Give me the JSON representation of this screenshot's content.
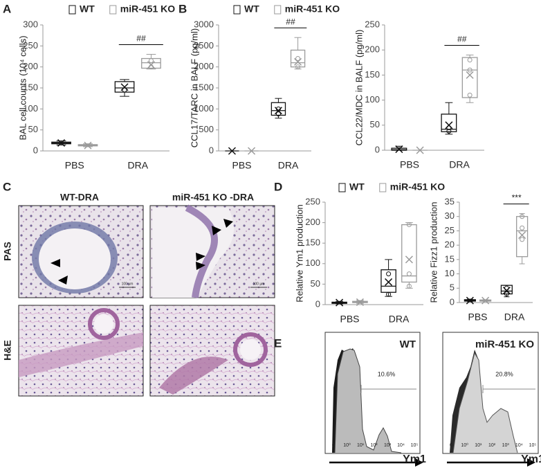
{
  "panel_labels": [
    "A",
    "B",
    "C",
    "D",
    "E"
  ],
  "chart_data": [
    {
      "type": "box",
      "ylabel": "BAL cell counts (10⁴ cells)",
      "categories": [
        "PBS",
        "DRA"
      ],
      "ylim": [
        0,
        300
      ],
      "yticks": [
        0,
        50,
        100,
        150,
        200,
        250,
        300
      ],
      "legend": true,
      "series": [
        {
          "name": "WT",
          "color": "#111111",
          "values": [
            {
              "min": 14,
              "q1": 17,
              "median": 19,
              "q3": 21,
              "max": 24,
              "mean": 19,
              "points": []
            },
            {
              "min": 130,
              "q1": 140,
              "median": 150,
              "q3": 165,
              "max": 170,
              "mean": 152,
              "points": [
                145
              ]
            }
          ]
        },
        {
          "name": "miR-451 KO",
          "color": "#9a9a9a",
          "values": [
            {
              "min": 10,
              "q1": 12,
              "median": 13,
              "q3": 15,
              "max": 17,
              "mean": 13,
              "points": []
            },
            {
              "min": 195,
              "q1": 197,
              "median": 210,
              "q3": 220,
              "max": 230,
              "mean": 205,
              "points": [
                200,
                215
              ]
            }
          ]
        }
      ],
      "annotations": [
        {
          "text": "##"
        }
      ]
    },
    {
      "type": "box",
      "ylabel": "CCL17/TARC in BALF (pg/ml)",
      "categories": [
        "PBS",
        "DRA"
      ],
      "ylim": [
        0,
        3000
      ],
      "yticks": [
        0,
        500,
        1000,
        1500,
        2000,
        2500,
        3000
      ],
      "legend": true,
      "series": [
        {
          "name": "WT",
          "color": "#111111",
          "values": [
            {
              "min": 0,
              "q1": 0,
              "median": 0,
              "q3": 0,
              "max": 0,
              "mean": 0,
              "points": []
            },
            {
              "min": 780,
              "q1": 850,
              "median": 960,
              "q3": 1150,
              "max": 1250,
              "mean": 960,
              "points": [
                880,
                1000
              ]
            }
          ]
        },
        {
          "name": "miR-451 KO",
          "color": "#9a9a9a",
          "values": [
            {
              "min": 0,
              "q1": 0,
              "median": 0,
              "q3": 0,
              "max": 0,
              "mean": 0,
              "points": []
            },
            {
              "min": 1950,
              "q1": 2000,
              "median": 2100,
              "q3": 2400,
              "max": 2700,
              "mean": 2120,
              "points": [
                2000,
                2200
              ]
            }
          ]
        }
      ],
      "annotations": [
        {
          "text": "##"
        }
      ]
    },
    {
      "type": "box",
      "ylabel": "CCL22/MDC in BALF (pg/ml)",
      "categories": [
        "PBS",
        "DRA"
      ],
      "ylim": [
        0,
        250
      ],
      "yticks": [
        0,
        50,
        100,
        150,
        200,
        250
      ],
      "legend": false,
      "series": [
        {
          "color": "#111111",
          "values": [
            {
              "min": 0,
              "q1": 0,
              "median": 1,
              "q3": 4,
              "max": 8,
              "mean": 2,
              "points": []
            },
            {
              "min": 32,
              "q1": 37,
              "median": 42,
              "q3": 72,
              "max": 95,
              "mean": 50,
              "points": [
                38,
                45
              ]
            }
          ]
        },
        {
          "color": "#9a9a9a",
          "values": [
            {
              "min": 0,
              "q1": 0,
              "median": 0,
              "q3": 0,
              "max": 0,
              "mean": 0,
              "points": []
            },
            {
              "min": 95,
              "q1": 105,
              "median": 160,
              "q3": 185,
              "max": 190,
              "mean": 150,
              "points": [
                110,
                160,
                180
              ]
            }
          ]
        }
      ],
      "annotations": [
        {
          "text": "##"
        }
      ]
    },
    {
      "type": "box",
      "ylabel": "Relative Ym1 production",
      "categories": [
        "PBS",
        "DRA"
      ],
      "ylim": [
        0,
        250
      ],
      "yticks": [
        0,
        50,
        100,
        150,
        200,
        250
      ],
      "legend": true,
      "series": [
        {
          "name": "WT",
          "color": "#111111",
          "values": [
            {
              "min": 2,
              "q1": 3,
              "median": 4,
              "q3": 6,
              "max": 8,
              "mean": 5,
              "points": []
            },
            {
              "min": 20,
              "q1": 30,
              "median": 45,
              "q3": 85,
              "max": 110,
              "mean": 55,
              "points": [
                25,
                75
              ]
            }
          ]
        },
        {
          "name": "miR-451 KO",
          "color": "#9a9a9a",
          "values": [
            {
              "min": 3,
              "q1": 5,
              "median": 6,
              "q3": 8,
              "max": 10,
              "mean": 6,
              "points": []
            },
            {
              "min": 40,
              "q1": 55,
              "median": 70,
              "q3": 195,
              "max": 200,
              "mean": 110,
              "points": [
                45,
                75,
                195
              ]
            }
          ]
        }
      ],
      "annotations": []
    },
    {
      "type": "box",
      "ylabel": "Relative Fizz1 production",
      "categories": [
        "PBS",
        "DRA"
      ],
      "ylim": [
        0,
        35
      ],
      "yticks": [
        0,
        5,
        10,
        15,
        20,
        25,
        30,
        35
      ],
      "legend": false,
      "series": [
        {
          "color": "#111111",
          "values": [
            {
              "min": 0.3,
              "q1": 0.5,
              "median": 0.7,
              "q3": 1,
              "max": 1.2,
              "mean": 0.7,
              "points": []
            },
            {
              "min": 2,
              "q1": 3,
              "median": 4,
              "q3": 6,
              "max": 6,
              "mean": 4.2,
              "points": [
                3,
                5
              ]
            }
          ]
        },
        {
          "color": "#9a9a9a",
          "values": [
            {
              "min": 0.4,
              "q1": 0.5,
              "median": 0.7,
              "q3": 0.9,
              "max": 1,
              "mean": 0.7,
              "points": []
            },
            {
              "min": 13.5,
              "q1": 16,
              "median": 25,
              "q3": 30,
              "max": 31,
              "mean": 23.5,
              "points": [
                22,
                26,
                30
              ]
            }
          ]
        }
      ],
      "annotations": [
        {
          "text": "***"
        }
      ]
    }
  ],
  "micrographs": {
    "columns": [
      "WT-DRA",
      "miR-451 KO -DRA"
    ],
    "rows": [
      "PAS",
      "H&E"
    ],
    "scale_bar": "100 µm"
  },
  "flow": [
    {
      "title": "WT",
      "gate_label": "10.6%",
      "xlabel": "Ym1",
      "xticks": [
        "0",
        "10⁰",
        "10¹",
        "10²",
        "10³",
        "10⁴",
        "10⁵"
      ]
    },
    {
      "title": "miR-451 KO",
      "gate_label": "20.8%",
      "xlabel": "Ym1",
      "xticks": [
        "0",
        "10⁰",
        "10¹",
        "10²",
        "10³",
        "10⁴",
        "10⁵"
      ]
    }
  ]
}
